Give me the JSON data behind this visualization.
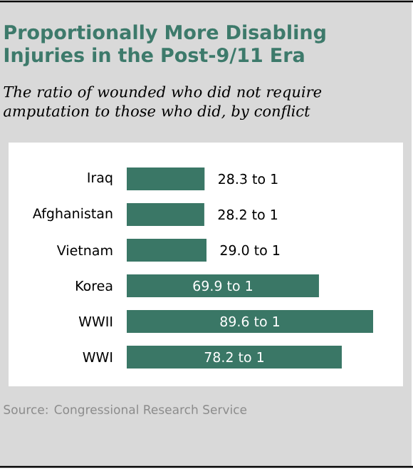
{
  "chart_data": {
    "type": "bar",
    "orientation": "horizontal",
    "title": "Proportionally More Disabling Injuries in the Post-9/11 Era",
    "subtitle": "The ratio of wounded who did not require amputation to those who did, by conflict",
    "categories": [
      "Iraq",
      "Afghanistan",
      "Vietnam",
      "Korea",
      "WWII",
      "WWI"
    ],
    "values": [
      28.3,
      28.2,
      29.0,
      69.9,
      89.6,
      78.2
    ],
    "value_labels": [
      "28.3 to 1",
      "28.2 to 1",
      "29.0 to 1",
      "69.9 to 1",
      "89.6 to 1",
      "78.2 to 1"
    ],
    "color": "#3a7766",
    "annotations": [
      "Source: Congressional Research Service"
    ]
  }
}
